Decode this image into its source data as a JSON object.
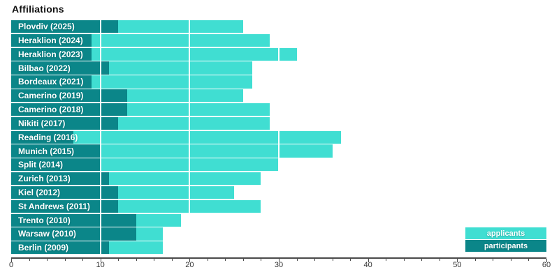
{
  "title": "Affiliations",
  "colors": {
    "applicants": "#40ded2",
    "participants": "#0b8689",
    "axis": "#4a4a4a",
    "tick_label": "#333333",
    "gridline": "#ffffff",
    "title": "#111111"
  },
  "legend": {
    "position": "bottom-right",
    "items": [
      {
        "label": "applicants",
        "color": "#40ded2"
      },
      {
        "label": "participants",
        "color": "#0b8689"
      }
    ]
  },
  "x_axis": {
    "min": 0,
    "max": 60,
    "major_tick_step": 10,
    "minor_tick_step": 2,
    "tick_labels": [
      "0",
      "10",
      "20",
      "30",
      "40",
      "50",
      "60"
    ]
  },
  "chart_data": {
    "type": "bar",
    "orientation": "horizontal",
    "title": "Affiliations",
    "xlabel": "",
    "ylabel": "",
    "xlim": [
      0,
      60
    ],
    "grid": "white vertical gridlines every 10 drawn over bars",
    "legend_position": "bottom-right",
    "bar_style": "overlay, both series start at 0, participants drawn on top of applicants",
    "categories": [
      "Plovdiv (2025)",
      "Heraklion (2024)",
      "Heraklion (2023)",
      "Bilbao (2022)",
      "Bordeaux (2021)",
      "Camerino (2019)",
      "Camerino (2018)",
      "Nikiti (2017)",
      "Reading (2016)",
      "Munich (2015)",
      "Split (2014)",
      "Zurich (2013)",
      "Kiel (2012)",
      "St Andrews (2011)",
      "Trento (2010)",
      "Warsaw (2010)",
      "Berlin (2009)"
    ],
    "series": [
      {
        "name": "applicants",
        "values": [
          26,
          29,
          32,
          27,
          27,
          26,
          29,
          29,
          37,
          36,
          30,
          28,
          25,
          28,
          19,
          17,
          17
        ]
      },
      {
        "name": "participants",
        "values": [
          12,
          9,
          9,
          11,
          9,
          13,
          13,
          12,
          7,
          10,
          10,
          11,
          12,
          12,
          14,
          14,
          11
        ]
      }
    ]
  }
}
